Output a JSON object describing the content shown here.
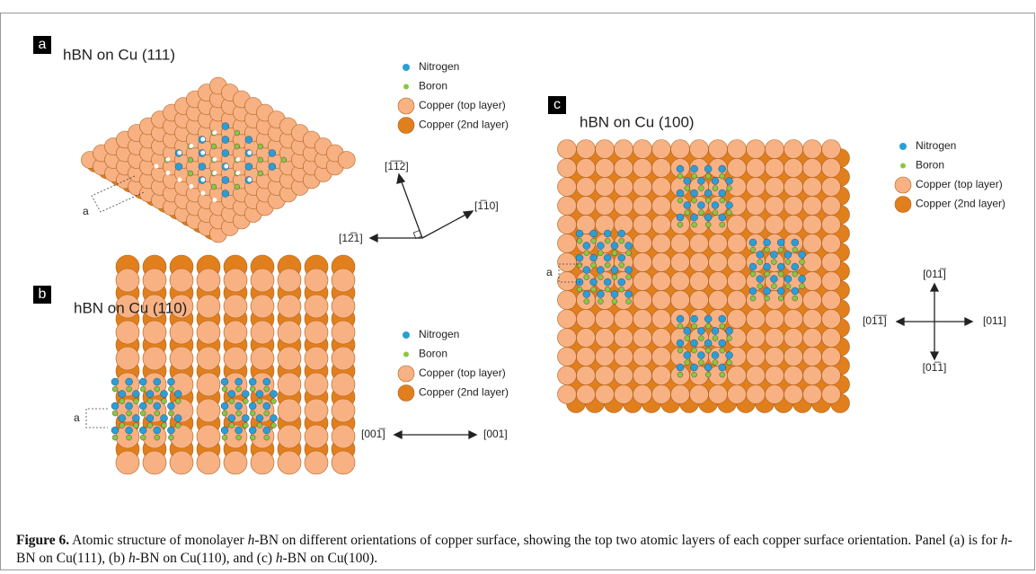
{
  "panels": [
    {
      "letter": "a",
      "title": "hBN on Cu (111)",
      "legend": [
        "Nitrogen",
        "Boron",
        "Copper (top layer)",
        "Copper (2nd layer)"
      ],
      "lattice_label": "a",
      "directions": [
        "[1̅1̅2]",
        "[1̅10]",
        "[12̅1]"
      ]
    },
    {
      "letter": "b",
      "title": "hBN on Cu (110)",
      "legend": [
        "Nitrogen",
        "Boron",
        "Copper (top layer)",
        "Copper (2nd layer)"
      ],
      "lattice_label": "a",
      "directions": [
        "[001̅]",
        "[001]"
      ]
    },
    {
      "letter": "c",
      "title": "hBN on Cu (100)",
      "legend": [
        "Nitrogen",
        "Boron",
        "Copper (top layer)",
        "Copper (2nd layer)"
      ],
      "lattice_label": "a",
      "directions": [
        "[011̅]",
        "[01̅1]",
        "[01̅1̅]",
        "[011]"
      ]
    }
  ],
  "caption": {
    "label": "Figure 6.",
    "segments": [
      "Atomic structure of monolayer ",
      "h",
      "-BN on different orientations of copper surface, showing the top two atomic layers of each copper surface orientation. Panel (a) is for ",
      "h",
      "-BN on Cu(111), (b) ",
      "h",
      "-BN on Cu(110), and (c) ",
      "h",
      "-BN on Cu(100)."
    ]
  }
}
